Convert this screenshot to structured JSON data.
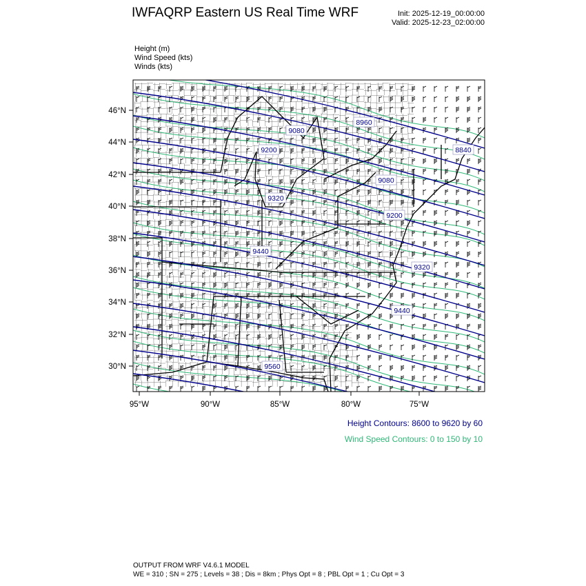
{
  "header": {
    "title": "IWFAQRP Eastern US Real Time WRF",
    "init": "Init: 2025-12-19_00:00:00",
    "valid": "Valid: 2025-12-23_02:00:00"
  },
  "fields": [
    "Height   (m)",
    "Wind Speed   (kts)",
    "Winds   (kts)"
  ],
  "map": {
    "lon_ticks": [
      "95°W",
      "90°W",
      "85°W",
      "80°W",
      "75°W"
    ],
    "lat_ticks": [
      "46°N",
      "44°N",
      "42°N",
      "40°N",
      "38°N",
      "36°N",
      "34°N",
      "32°N",
      "30°N"
    ],
    "height_labels": [
      "8960",
      "9080",
      "9200",
      "9320",
      "9440",
      "9560",
      "8840",
      "9080",
      "9200",
      "9320",
      "9440"
    ],
    "colors": {
      "height": "#00008b",
      "wind_speed": "#2fb877",
      "boundaries": "#000000"
    }
  },
  "legend": {
    "height_contours": "Height Contours: 8600 to 9620 by 60",
    "wind_contours": "Wind Speed Contours: 0 to 150 by 10"
  },
  "footer": {
    "line1": "OUTPUT FROM WRF V4.6.1 MODEL",
    "line2": "WE = 310 ; SN = 275 ; Levels = 38 ; Dis = 8km ; Phys Opt = 8 ; PBL Opt = 1 ; Cu Opt = 3"
  }
}
